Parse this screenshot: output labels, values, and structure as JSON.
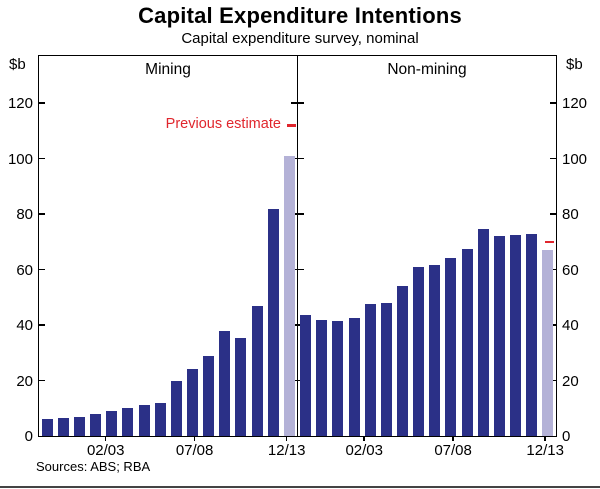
{
  "chart_data": {
    "type": "bar",
    "title": "Capital Expenditure Intentions",
    "subtitle": "Capital expenditure survey, nominal",
    "unit_label_left": "$b",
    "unit_label_right": "$b",
    "ylim": [
      0,
      137
    ],
    "yticks": [
      0,
      20,
      40,
      60,
      80,
      100,
      120
    ],
    "grid": false,
    "legend": "none",
    "annotation_label": "Previous estimate",
    "source": "Sources: ABS; RBA",
    "x_tick_labels": [
      "02/03",
      "07/08",
      "12/13"
    ],
    "x_tick_slots": [
      3.6,
      9.1,
      14.8
    ],
    "colors": {
      "bar": "#2b3087",
      "estimate_bar": "#b4b2d7",
      "annotation": "#e0262d",
      "axis": "#000000"
    },
    "panels": [
      {
        "label": "Mining",
        "values": [
          6,
          6.5,
          7,
          8,
          9,
          10,
          11,
          12,
          20,
          24,
          29,
          38,
          35.5,
          47,
          82
        ],
        "estimate": 101,
        "previous_estimate": 112
      },
      {
        "label": "Non-mining",
        "values": [
          43.5,
          42,
          41.5,
          42.5,
          47.5,
          48,
          54,
          61,
          61.5,
          64,
          67.5,
          74.5,
          72,
          72.5,
          73
        ],
        "estimate": 67,
        "previous_estimate": 70
      }
    ]
  }
}
